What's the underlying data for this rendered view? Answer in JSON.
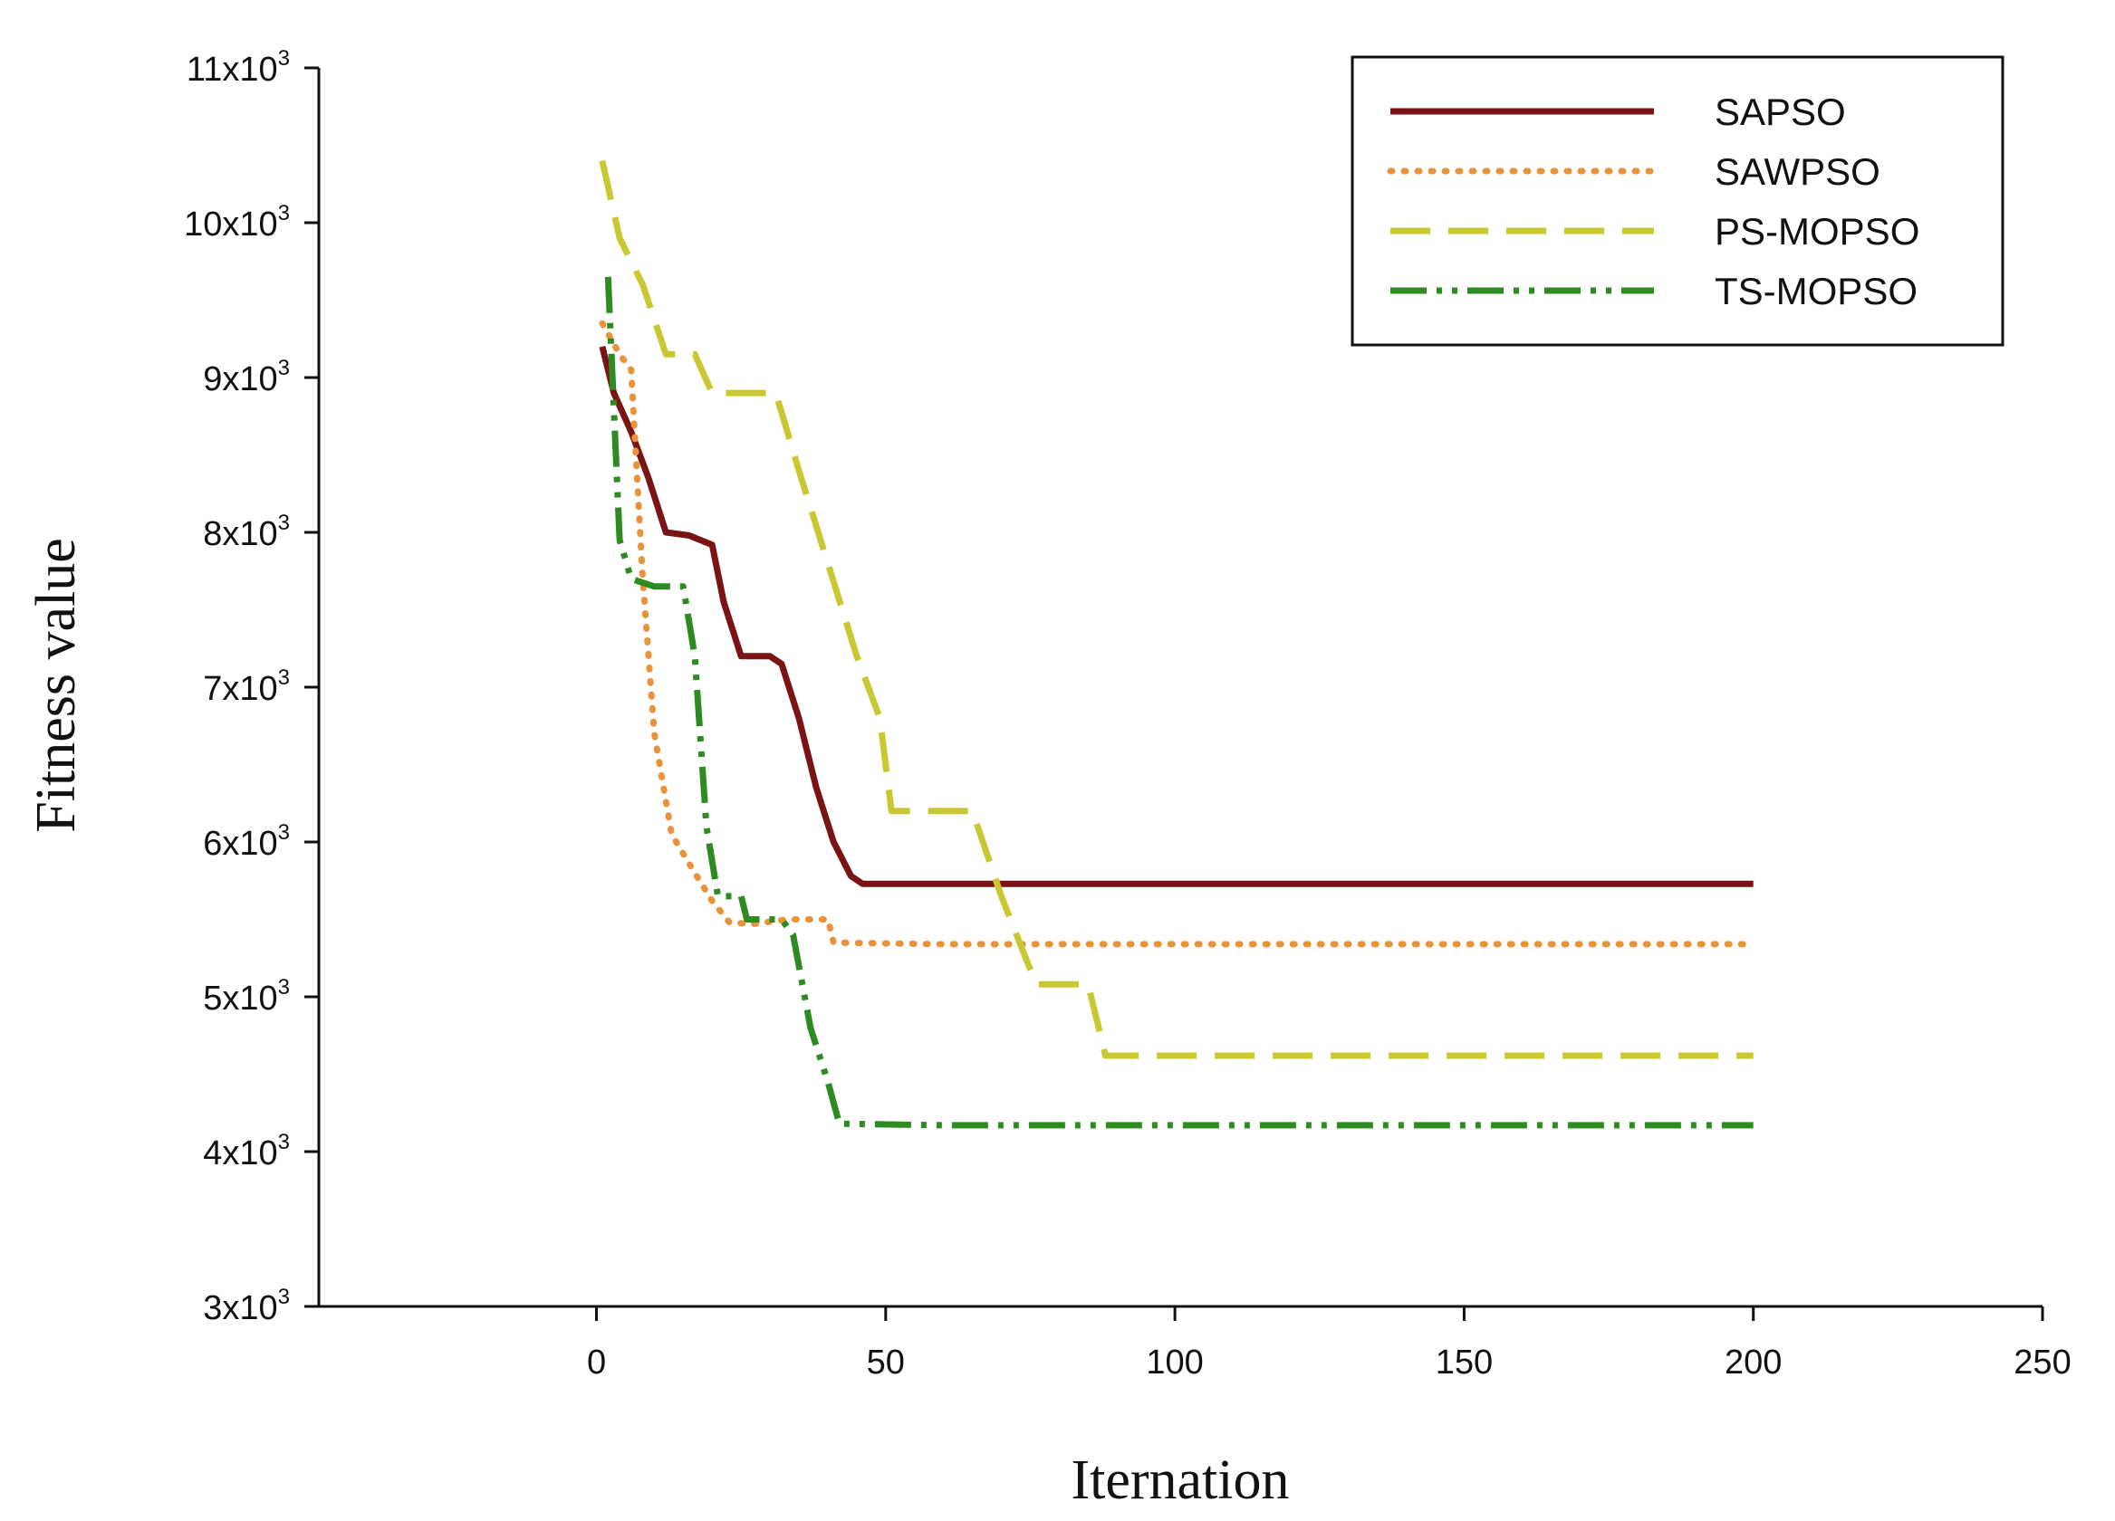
{
  "chart_data": {
    "type": "line",
    "title": "",
    "xlabel": "Iternation",
    "ylabel": "Fitness value",
    "xlim": [
      -48,
      250
    ],
    "ylim": [
      3000,
      11000
    ],
    "x_ticks": [
      0,
      50,
      100,
      150,
      200,
      250
    ],
    "x_tick_labels": [
      "0",
      "50",
      "100",
      "150",
      "200",
      "250"
    ],
    "y_ticks": [
      3000,
      4000,
      5000,
      6000,
      7000,
      8000,
      9000,
      10000,
      11000
    ],
    "y_tick_labels": [
      {
        "base": "3x10",
        "exp": "3"
      },
      {
        "base": "4x10",
        "exp": "3"
      },
      {
        "base": "5x10",
        "exp": "3"
      },
      {
        "base": "6x10",
        "exp": "3"
      },
      {
        "base": "7x10",
        "exp": "3"
      },
      {
        "base": "8x10",
        "exp": "3"
      },
      {
        "base": "9x10",
        "exp": "3"
      },
      {
        "base": "10x10",
        "exp": "3"
      },
      {
        "base": "11x10",
        "exp": "3"
      }
    ],
    "legend_position": "top-right",
    "series": [
      {
        "name": "SAPSO",
        "color": "#7a1414",
        "style": "solid",
        "points": [
          [
            1,
            9200
          ],
          [
            3,
            8900
          ],
          [
            6,
            8650
          ],
          [
            9,
            8350
          ],
          [
            12,
            8000
          ],
          [
            16,
            7980
          ],
          [
            20,
            7920
          ],
          [
            22,
            7550
          ],
          [
            25,
            7200
          ],
          [
            30,
            7200
          ],
          [
            32,
            7150
          ],
          [
            35,
            6800
          ],
          [
            38,
            6350
          ],
          [
            41,
            6000
          ],
          [
            44,
            5780
          ],
          [
            46,
            5730
          ],
          [
            60,
            5730
          ],
          [
            100,
            5730
          ],
          [
            150,
            5730
          ],
          [
            200,
            5730
          ]
        ]
      },
      {
        "name": "SAWPSO",
        "color": "#e8923a",
        "style": "dotted",
        "points": [
          [
            1,
            9350
          ],
          [
            4,
            9150
          ],
          [
            6,
            9050
          ],
          [
            8,
            7700
          ],
          [
            10,
            6700
          ],
          [
            13,
            6050
          ],
          [
            17,
            5800
          ],
          [
            20,
            5620
          ],
          [
            23,
            5480
          ],
          [
            27,
            5470
          ],
          [
            33,
            5500
          ],
          [
            40,
            5500
          ],
          [
            41,
            5350
          ],
          [
            60,
            5340
          ],
          [
            100,
            5340
          ],
          [
            150,
            5340
          ],
          [
            200,
            5340
          ]
        ]
      },
      {
        "name": "PS-MOPSO",
        "color": "#c9c833",
        "style": "dashed",
        "points": [
          [
            1,
            10400
          ],
          [
            4,
            9900
          ],
          [
            8,
            9600
          ],
          [
            12,
            9150
          ],
          [
            17,
            9150
          ],
          [
            20,
            8900
          ],
          [
            31,
            8900
          ],
          [
            35,
            8400
          ],
          [
            40,
            7800
          ],
          [
            45,
            7200
          ],
          [
            49,
            6800
          ],
          [
            51,
            6200
          ],
          [
            65,
            6200
          ],
          [
            70,
            5650
          ],
          [
            76,
            5080
          ],
          [
            85,
            5080
          ],
          [
            88,
            4620
          ],
          [
            100,
            4620
          ],
          [
            150,
            4620
          ],
          [
            200,
            4620
          ]
        ]
      },
      {
        "name": "TS-MOPSO",
        "color": "#2e8b22",
        "style": "dashdotdot",
        "points": [
          [
            2,
            9650
          ],
          [
            3,
            8800
          ],
          [
            4,
            7950
          ],
          [
            6,
            7700
          ],
          [
            10,
            7650
          ],
          [
            15,
            7650
          ],
          [
            17,
            7200
          ],
          [
            19,
            6100
          ],
          [
            21,
            5650
          ],
          [
            25,
            5650
          ],
          [
            26,
            5500
          ],
          [
            32,
            5500
          ],
          [
            34,
            5400
          ],
          [
            37,
            4800
          ],
          [
            40,
            4450
          ],
          [
            42,
            4180
          ],
          [
            60,
            4170
          ],
          [
            100,
            4170
          ],
          [
            150,
            4170
          ],
          [
            200,
            4170
          ]
        ]
      }
    ]
  }
}
